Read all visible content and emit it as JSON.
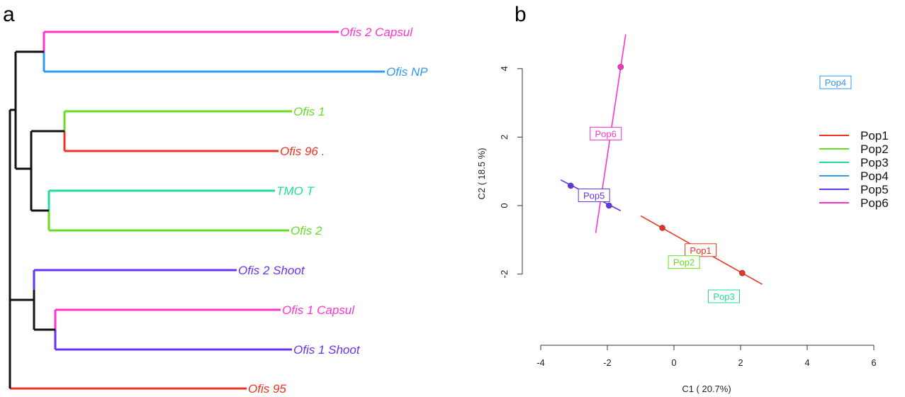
{
  "panels": {
    "a": "a",
    "b": "b"
  },
  "chart_data": [
    {
      "type": "dendrogram",
      "leaves": [
        {
          "label": "Ofis 2 Capsul",
          "color": "#ff33cc"
        },
        {
          "label": "Ofis NP",
          "color": "#3399ee"
        },
        {
          "label": "Ofis 1",
          "color": "#66dd22"
        },
        {
          "label": "Ofis 96 .",
          "color": "#ee3322"
        },
        {
          "label": "TMO T",
          "color": "#22dd99"
        },
        {
          "label": "Ofis 2",
          "color": "#66dd22"
        },
        {
          "label": "Ofis 2 Shoot",
          "color": "#6633ee"
        },
        {
          "label": "Ofis 1 Capsul",
          "color": "#ff33cc"
        },
        {
          "label": "Ofis 1 Shoot",
          "color": "#6633ee"
        },
        {
          "label": "Ofis 95",
          "color": "#ee3322"
        }
      ]
    },
    {
      "type": "scatter",
      "xlabel": "C1 ( 20.7%)",
      "ylabel": "C2 ( 18.5 %)",
      "xlim": [
        -4,
        6
      ],
      "ylim": [
        -4.5,
        5
      ],
      "x_ticks": [
        -4,
        -2,
        0,
        2,
        4,
        6
      ],
      "y_ticks": [
        -2,
        0,
        2,
        4
      ],
      "grid": false,
      "legend_position": "right",
      "groups": [
        {
          "name": "Pop1",
          "color": "#ee3322",
          "label_at": [
            0.8,
            -1.3
          ],
          "line": [
            [
              -1.0,
              -0.3
            ],
            [
              2.65,
              -2.3
            ]
          ],
          "points": [
            [
              -0.35,
              -0.65
            ],
            [
              2.05,
              -1.97
            ]
          ]
        },
        {
          "name": "Pop2",
          "color": "#66dd22",
          "label_at": [
            0.3,
            -1.65
          ],
          "line": null,
          "points": []
        },
        {
          "name": "Pop3",
          "color": "#22dd99",
          "label_at": [
            1.5,
            -2.65
          ],
          "line": null,
          "points": []
        },
        {
          "name": "Pop4",
          "color": "#3399ee",
          "label_at": [
            4.85,
            3.6
          ],
          "line": null,
          "points": []
        },
        {
          "name": "Pop5",
          "color": "#6633ee",
          "label_at": [
            -2.4,
            0.3
          ],
          "line": [
            [
              -3.4,
              0.75
            ],
            [
              -1.6,
              -0.15
            ]
          ],
          "points": [
            [
              -3.1,
              0.58
            ],
            [
              -1.95,
              0.0
            ]
          ]
        },
        {
          "name": "Pop6",
          "color": "#ff33cc",
          "label_at": [
            -2.05,
            2.1
          ],
          "line": [
            [
              -2.35,
              -0.8
            ],
            [
              -1.45,
              5.0
            ]
          ],
          "points": [
            [
              -1.6,
              4.05
            ]
          ]
        }
      ]
    }
  ]
}
